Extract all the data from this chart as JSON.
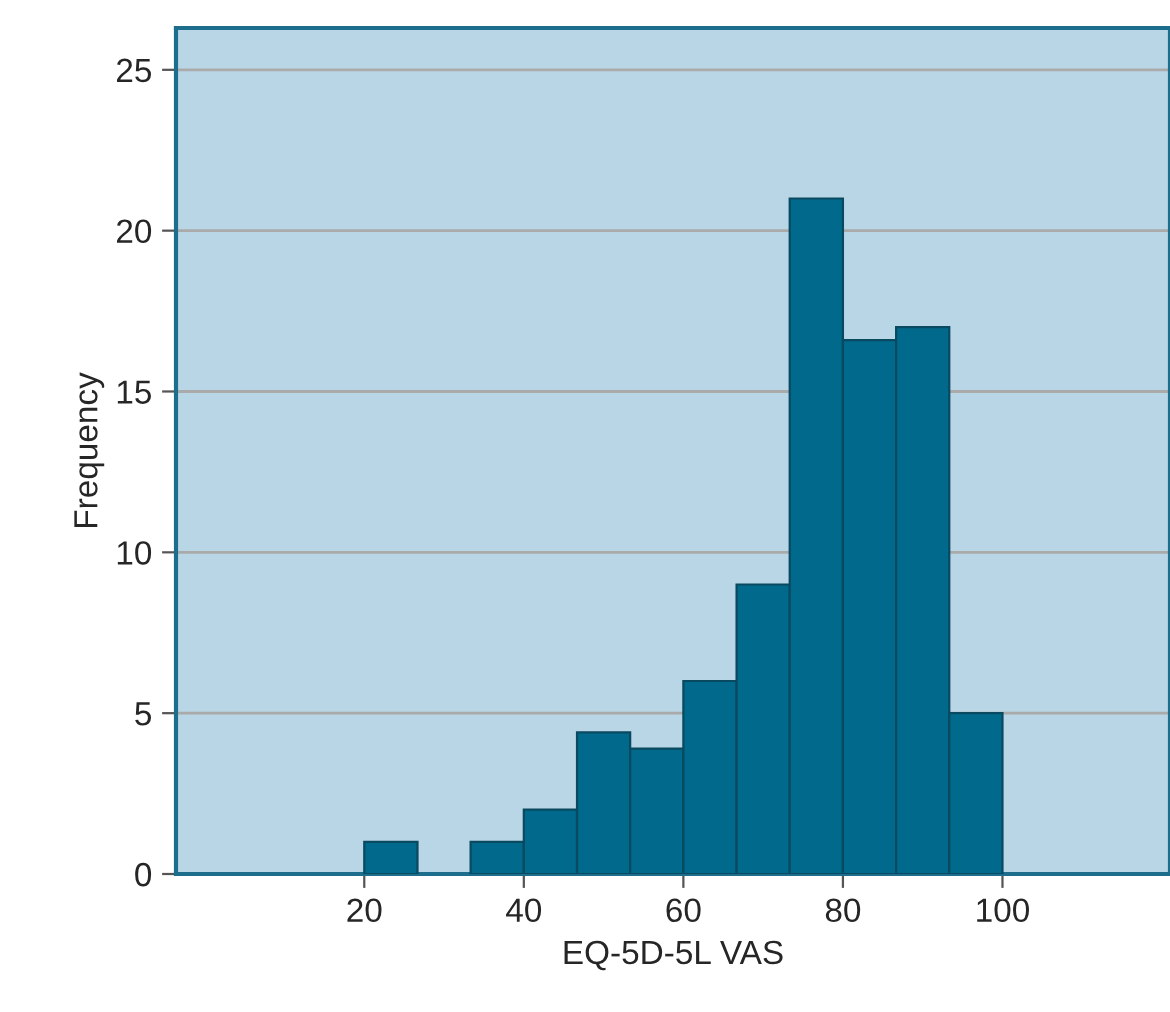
{
  "chart_data": {
    "type": "histogram",
    "xlabel": "EQ-5D-5L VAS",
    "ylabel": "Frequency",
    "bins": [
      20,
      26.67,
      33.33,
      40,
      46.67,
      53.33,
      60,
      66.67,
      73.33,
      80,
      86.67,
      93.33,
      100
    ],
    "values": [
      1,
      0,
      1,
      2,
      4.4,
      3.9,
      6,
      9,
      21,
      16.6,
      17,
      5
    ],
    "color": "#00698c",
    "xlim": [
      -3.6,
      121
    ],
    "xticks": [
      20,
      40,
      60,
      80,
      100
    ],
    "ylim": [
      0,
      26.3
    ],
    "yticks": [
      0,
      5,
      10,
      15,
      20,
      25
    ],
    "grid": "y",
    "legend": false
  }
}
